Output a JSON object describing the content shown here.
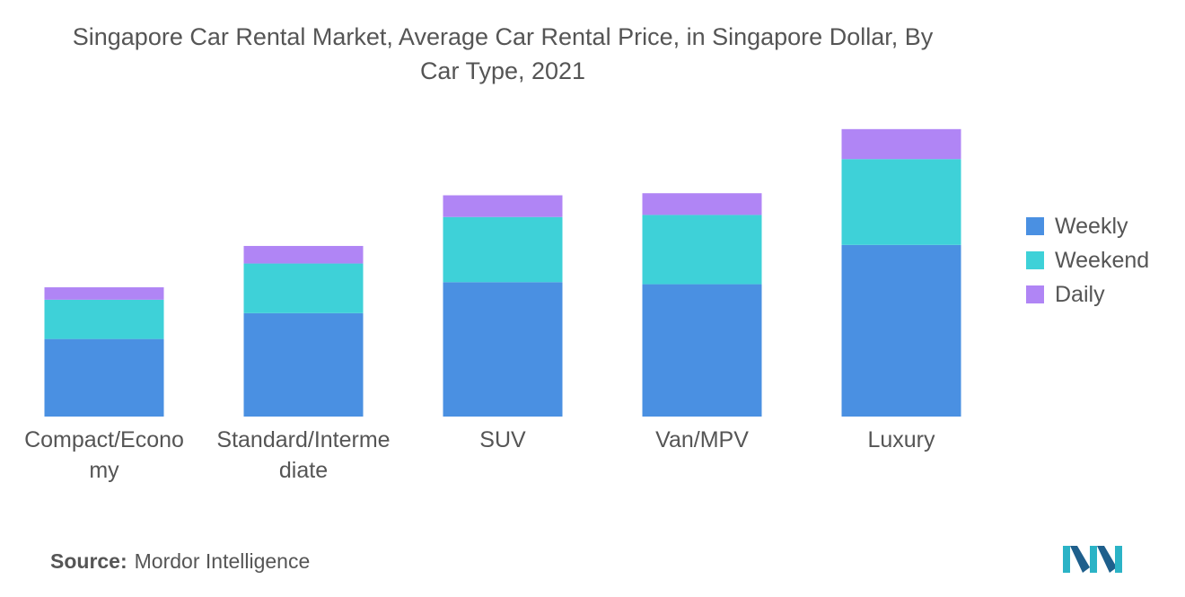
{
  "title_line1": "Singapore Car Rental Market, Average Car Rental Price, in Singapore Dollar, By",
  "title_line2": "Car Type, 2021",
  "source_label": "Source:",
  "source_text": "Mordor Intelligence",
  "colors": {
    "Weekly": "#4a90e2",
    "Weekend": "#3ed1d8",
    "Daily": "#b085f5"
  },
  "chart_data": {
    "type": "bar",
    "stacked": true,
    "categories": [
      "Compact/Economy",
      "Standard/Intermediate",
      "SUV",
      "Van/MPV",
      "Luxury"
    ],
    "category_lines": [
      [
        "Compact/Econo",
        "my"
      ],
      [
        "Standard/Interme",
        "diate"
      ],
      [
        "SUV"
      ],
      [
        "Van/MPV"
      ],
      [
        "Luxury"
      ]
    ],
    "series": [
      {
        "name": "Weekly",
        "values": [
          75,
          100,
          130,
          128,
          166
        ]
      },
      {
        "name": "Weekend",
        "values": [
          38,
          48,
          63,
          67,
          83
        ]
      },
      {
        "name": "Daily",
        "values": [
          12,
          17,
          21,
          21,
          29
        ]
      }
    ],
    "ylim": [
      0,
      290
    ],
    "grid": false,
    "legend_position": "right"
  }
}
